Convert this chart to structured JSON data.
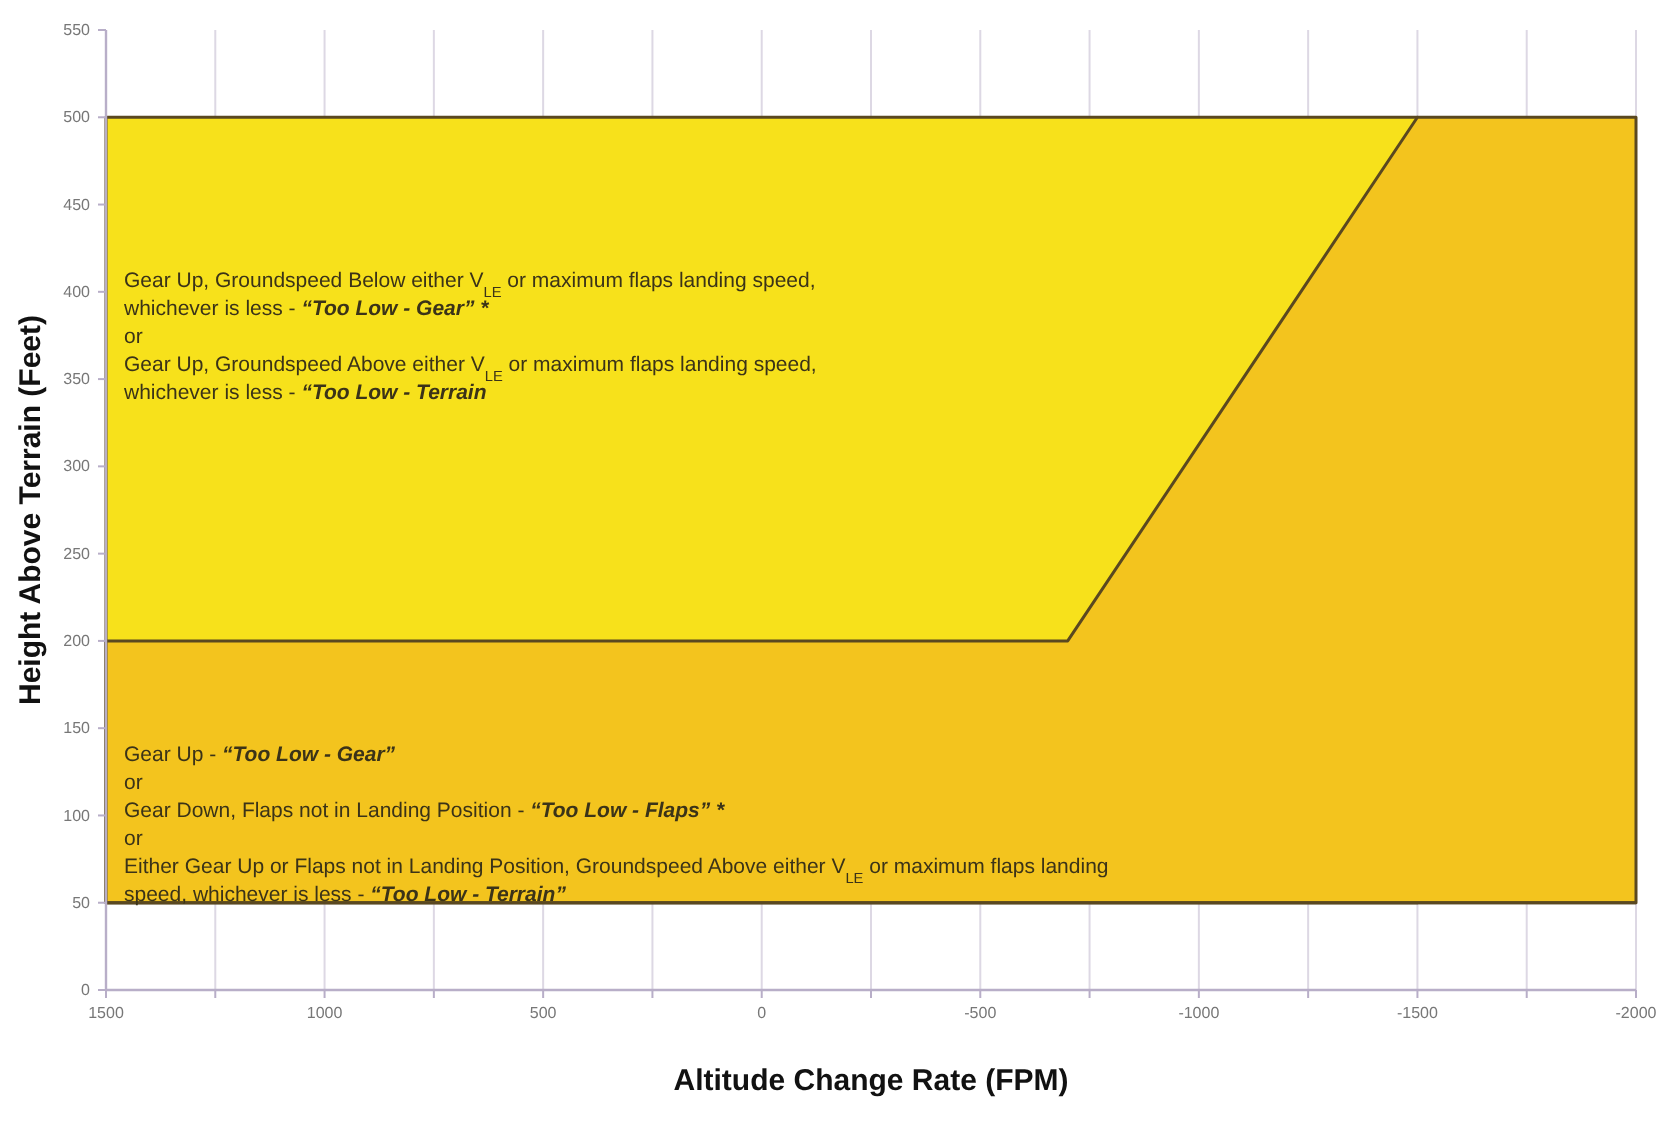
{
  "chart_data": {
    "type": "area",
    "xlabel": "Altitude Change Rate (FPM)",
    "ylabel": "Height Above Terrain (Feet)",
    "xlim": [
      1500,
      -2000
    ],
    "ylim": [
      0,
      550
    ],
    "xticks": [
      1500,
      {
        "value": 1250,
        "label": null
      },
      1000,
      {
        "value": 750,
        "label": null
      },
      500,
      {
        "value": 250,
        "label": null
      },
      0,
      {
        "value": -250,
        "label": null
      },
      -500,
      {
        "value": -750,
        "label": null
      },
      -1000,
      {
        "value": -1250,
        "label": null
      },
      -1500,
      {
        "value": -1750,
        "label": null
      },
      -2000
    ],
    "yticks": [
      0,
      50,
      100,
      150,
      200,
      250,
      300,
      350,
      400,
      450,
      500,
      550
    ],
    "grid": "x",
    "ref_lines": [
      {
        "axis": "y",
        "value": 50,
        "color": "#5a4820"
      }
    ],
    "series": [
      {
        "color": "#f7e11b",
        "x": [
          1500,
          -1500
        ],
        "values": [
          500,
          500
        ]
      },
      {
        "color": "#f3c41e",
        "x": [
          1500,
          -700,
          -1500,
          -2000
        ],
        "values": [
          200,
          200,
          500,
          500
        ]
      }
    ],
    "annotations": [
      "Gear Up, Groundspeed Below either V$_{LE}$ or maximum flaps landing speed,",
      "whichever is less - “Too Low - Gear” *",
      "   or",
      "Gear Up, Groundspeed Above either V$_{LE}$ or maximum flaps landing speed,",
      "whichever is less  - “Too Low - Terrain",
      "Gear Up - “Too Low - Gear”",
      "   or",
      "Gear Down, Flaps not in Landing Position - “Too Low - Flaps” *",
      "   or",
      "Either Gear Up or Flaps not in Landing Position, Groundspeed Above either V$_{LE}$ or maximum flaps landing",
      "speed, whichever is less  - “Too Low - Terrain”"
    ]
  }
}
